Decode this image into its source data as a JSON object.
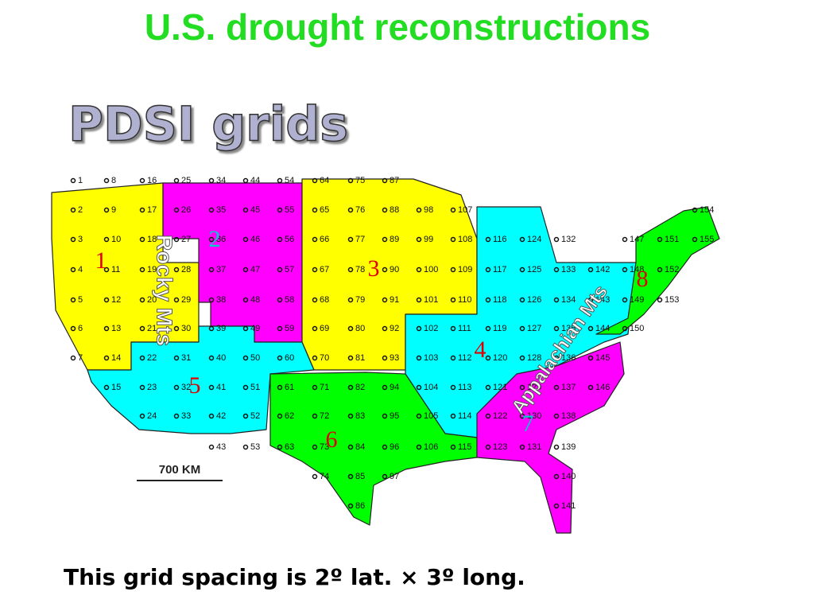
{
  "title": "U.S. drought reconstructions",
  "subtitle": "PDSI grids",
  "grid_points": [
    1,
    2,
    3,
    4,
    5,
    6,
    7,
    8,
    9,
    10,
    11,
    12,
    13,
    14,
    15,
    16,
    17,
    18,
    19,
    20,
    21,
    22,
    23,
    24,
    25,
    26,
    27,
    28,
    29,
    30,
    31,
    32,
    33,
    34,
    35,
    36,
    37,
    38,
    39,
    40,
    41,
    42,
    43,
    44,
    45,
    46,
    47,
    48,
    49,
    50,
    51,
    52,
    53,
    54,
    55,
    56,
    57,
    58,
    59,
    60,
    61,
    62,
    63,
    64,
    65,
    66,
    67,
    68,
    69,
    70,
    71,
    72,
    73,
    74,
    75,
    76,
    77,
    78,
    79,
    80,
    81,
    82,
    83,
    84,
    85,
    86,
    87,
    88,
    89,
    90,
    91,
    92,
    93,
    94,
    95,
    96,
    97,
    98,
    99,
    100,
    101,
    102,
    103,
    104,
    105,
    106,
    107,
    108,
    109,
    110,
    111,
    112,
    113,
    114,
    115,
    116,
    117,
    118,
    119,
    120,
    121,
    122,
    123,
    124,
    125,
    126,
    127,
    128,
    129,
    130,
    131,
    132,
    133,
    134,
    135,
    136,
    137,
    138,
    139,
    140,
    141,
    142,
    143,
    144,
    145,
    146,
    147,
    148,
    149,
    150,
    151,
    152,
    153,
    154,
    155
  ],
  "regions": [
    1,
    2,
    3,
    4,
    5,
    6,
    7,
    8
  ],
  "mountain_labels": [
    "Rocky Mts",
    "Appalachian Mts"
  ],
  "scale_label": "700 KM",
  "caption": "This grid spacing is 2º lat. × 3º long."
}
